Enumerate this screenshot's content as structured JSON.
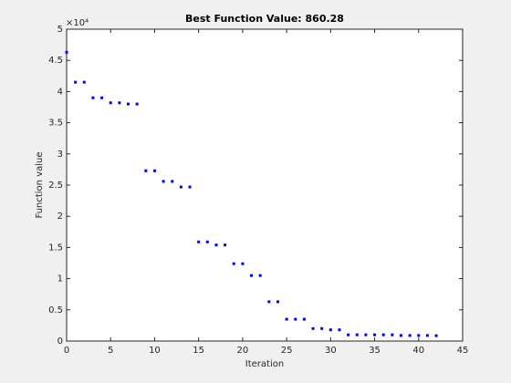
{
  "chart_data": {
    "type": "scatter",
    "title": "Best Function Value: 860.28",
    "xlabel": "Iteration",
    "ylabel": "Function value",
    "y_exponent": "×10⁴",
    "x": [
      0,
      1,
      2,
      3,
      4,
      5,
      6,
      7,
      8,
      9,
      10,
      11,
      12,
      13,
      14,
      15,
      16,
      17,
      18,
      19,
      20,
      21,
      22,
      23,
      24,
      25,
      26,
      27,
      28,
      29,
      30,
      31,
      32,
      33,
      34,
      35,
      36,
      37,
      38,
      39,
      40,
      41,
      42
    ],
    "values": [
      4.63,
      4.15,
      4.15,
      3.9,
      3.9,
      3.82,
      3.82,
      3.8,
      3.8,
      2.73,
      2.73,
      2.56,
      2.56,
      2.47,
      2.47,
      1.59,
      1.59,
      1.54,
      1.54,
      1.24,
      1.24,
      1.05,
      1.05,
      0.63,
      0.63,
      0.35,
      0.35,
      0.35,
      0.2,
      0.2,
      0.18,
      0.18,
      0.1,
      0.1,
      0.1,
      0.1,
      0.1,
      0.1,
      0.09,
      0.09,
      0.09,
      0.09,
      0.086
    ],
    "color": "#0000ff",
    "xlim": [
      0,
      45
    ],
    "xticks": [
      0,
      5,
      10,
      15,
      20,
      25,
      30,
      35,
      40,
      45
    ],
    "ylim": [
      0,
      5
    ],
    "yticks": [
      0,
      0.5,
      1,
      1.5,
      2,
      2.5,
      3,
      3.5,
      4,
      4.5,
      5
    ]
  }
}
